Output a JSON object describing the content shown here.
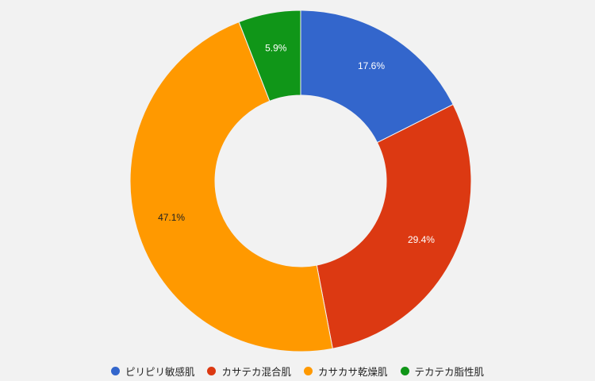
{
  "chart_data": {
    "type": "donut",
    "categories": [
      "ピリピリ敏感肌",
      "カサテカ混合肌",
      "カサカサ乾燥肌",
      "テカテカ脂性肌"
    ],
    "values": [
      17.6,
      29.4,
      47.1,
      5.9
    ],
    "value_labels": [
      "17.6%",
      "29.4%",
      "47.1%",
      "5.9%"
    ],
    "colors": [
      "#3366cc",
      "#dc3912",
      "#ff9900",
      "#109618"
    ],
    "legend": "bottom"
  }
}
